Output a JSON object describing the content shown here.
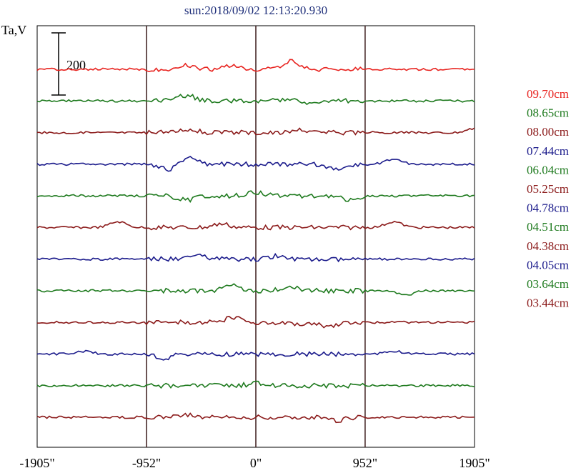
{
  "chart_data": {
    "type": "line",
    "title": "sun:2018/09/02 12:13:20.930",
    "ylabel": "Ta,V",
    "xlabel": "",
    "x_unit": "arcsec",
    "xlim": [
      -1905,
      1905
    ],
    "x_ticks": [
      {
        "value": -1905,
        "label": "-1905\""
      },
      {
        "value": -952,
        "label": "-952\""
      },
      {
        "value": 0,
        "label": "0\""
      },
      {
        "value": 952,
        "label": "952\""
      },
      {
        "value": 1905,
        "label": "1905\""
      }
    ],
    "vertical_lines": [
      -952,
      0,
      952
    ],
    "scale_bar": {
      "value": 200,
      "label": "200"
    },
    "grid": false,
    "legend_position": "right",
    "series": [
      {
        "name": "09.70cm",
        "color": "#e8231f",
        "peak_x": [
          -600,
          300,
          -200
        ],
        "peak_y": [
          -6,
          -12,
          -5
        ]
      },
      {
        "name": "08.65cm",
        "color": "#1e7a1e",
        "peak_x": [
          -600,
          300,
          500
        ],
        "peak_y": [
          -8,
          -4,
          3
        ]
      },
      {
        "name": "08.00cm",
        "color": "#8b1a1a",
        "peak_x": [
          -600,
          400,
          1905
        ],
        "peak_y": [
          -5,
          -3,
          -6
        ]
      },
      {
        "name": "07.44cm",
        "color": "#1a1a8b",
        "peak_x": [
          -600,
          -750,
          700,
          1200
        ],
        "peak_y": [
          -10,
          8,
          6,
          -7
        ]
      },
      {
        "name": "06.04cm",
        "color": "#1e7a1e",
        "peak_x": [
          -600,
          0,
          800
        ],
        "peak_y": [
          6,
          -5,
          5
        ]
      },
      {
        "name": "05.25cm",
        "color": "#8b1a1a",
        "peak_x": [
          -1200,
          1200,
          -300
        ],
        "peak_y": [
          -8,
          -8,
          -5
        ]
      },
      {
        "name": "04.78cm",
        "color": "#1a1a8b",
        "peak_x": [
          -500,
          200
        ],
        "peak_y": [
          -5,
          -5
        ]
      },
      {
        "name": "04.51cm",
        "color": "#1e7a1e",
        "peak_x": [
          -200,
          300,
          1300
        ],
        "peak_y": [
          -7,
          -6,
          6
        ]
      },
      {
        "name": "04.38cm",
        "color": "#8b1a1a",
        "peak_x": [
          -200,
          400,
          650
        ],
        "peak_y": [
          -7,
          4,
          6
        ]
      },
      {
        "name": "04.05cm",
        "color": "#1a1a8b",
        "peak_x": [
          -1500,
          1200,
          -800
        ],
        "peak_y": [
          -4,
          -4,
          6
        ]
      },
      {
        "name": "03.64cm",
        "color": "#1e7a1e",
        "peak_x": [
          0
        ],
        "peak_y": [
          -3
        ]
      },
      {
        "name": "03.44cm",
        "color": "#8b1a1a",
        "peak_x": [
          700,
          -600
        ],
        "peak_y": [
          5,
          -4
        ]
      }
    ]
  }
}
